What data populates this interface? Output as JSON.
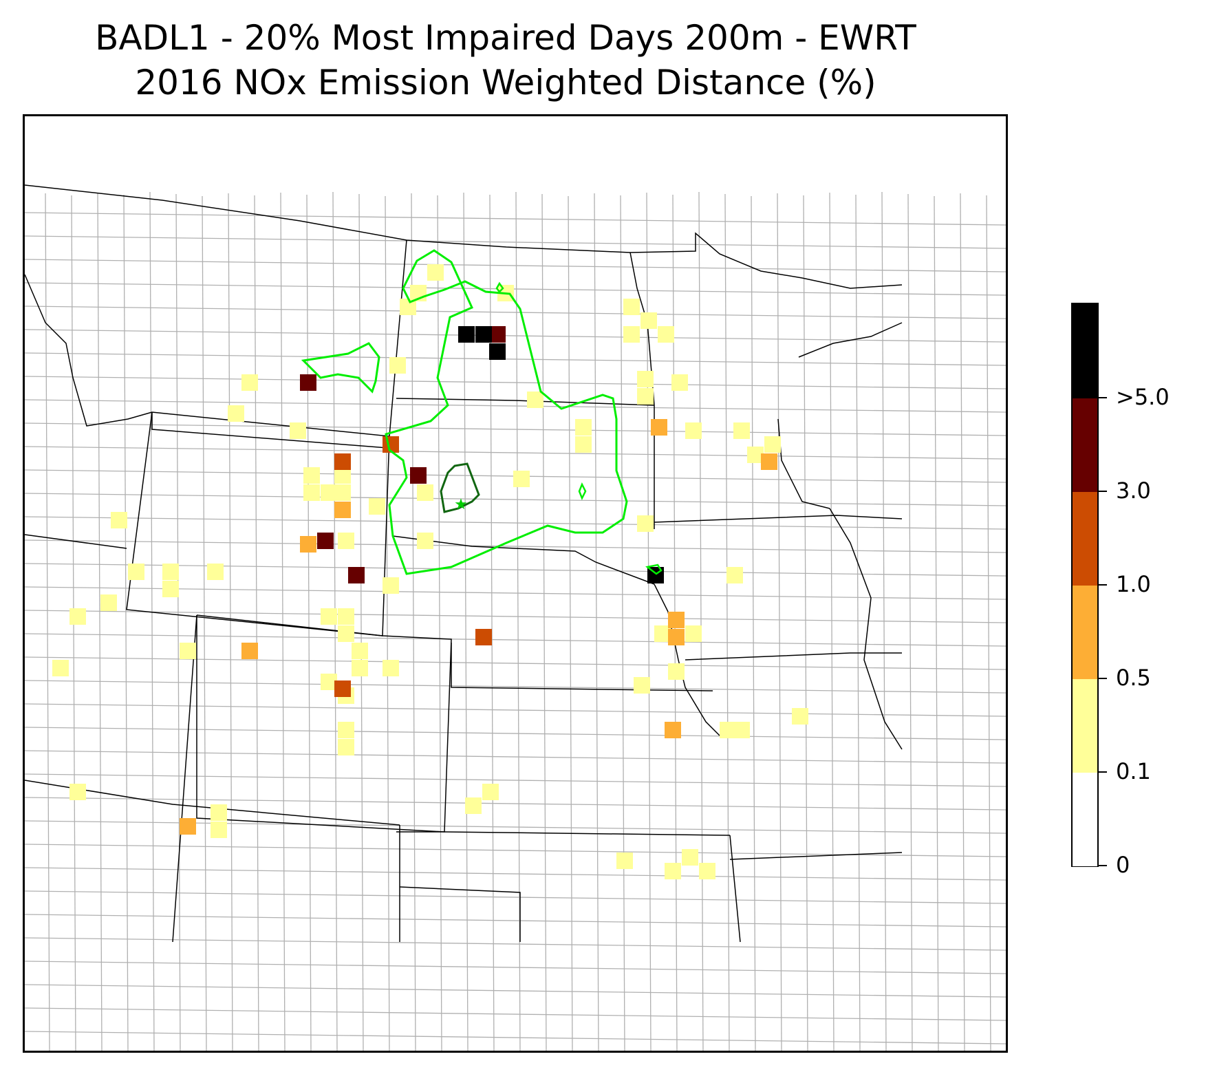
{
  "title": {
    "line1": "BADL1 - 20% Most Impaired Days 200m - EWRT",
    "line2": "2016 NOx Emission Weighted Distance (%)"
  },
  "legend": {
    "bins": [
      {
        "from": "0",
        "to": "0.1",
        "color": "#ffffff"
      },
      {
        "from": "0.1",
        "to": "0.5",
        "color": "#ffff99"
      },
      {
        "from": "0.5",
        "to": "1.0",
        "color": "#fdae35"
      },
      {
        "from": "1.0",
        "to": "3.0",
        "color": "#cc4c02"
      },
      {
        "from": "3.0",
        "to": "5.0",
        "color": "#660000"
      },
      {
        "from": "5.0",
        "to": "",
        "color": "#000000"
      }
    ],
    "tick_labels": [
      "0",
      "0.1",
      "0.5",
      "1.0",
      "3.0",
      ">5.0"
    ]
  },
  "map": {
    "site_marker": "green-star",
    "outer_contour_color": "#00ee00",
    "inner_contour_color": "#116611",
    "state_line_color": "#000000",
    "county_line_color": "#b0b0b0"
  }
}
